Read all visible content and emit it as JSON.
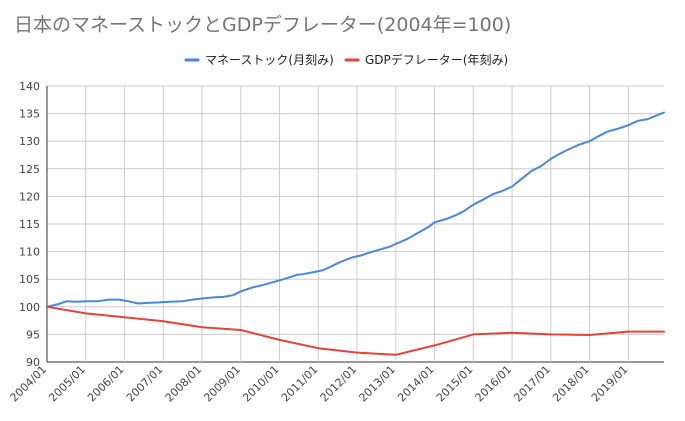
{
  "chart_data": {
    "type": "line",
    "title": "日本のマネーストックとGDPデフレーター(2004年=100)",
    "xlabel": "",
    "ylabel": "",
    "ylim": [
      90,
      140
    ],
    "yticks": [
      "90",
      "95",
      "100",
      "105",
      "110",
      "115",
      "120",
      "125",
      "130",
      "135",
      "140"
    ],
    "xlim": [
      2004.0,
      2019.92
    ],
    "xticks": [
      "2004/01",
      "2005/01",
      "2006/01",
      "2007/01",
      "2008/01",
      "2009/01",
      "2010/01",
      "2011/01",
      "2012/01",
      "2013/01",
      "2014/01",
      "2015/01",
      "2016/01",
      "2017/01",
      "2018/01",
      "2019/01"
    ],
    "grid": true,
    "legend_position": "top",
    "series": [
      {
        "name": "マネーストック(月刻み)",
        "color": "#4a86e8",
        "x": [
          2004.0,
          2004.3,
          2004.5,
          2004.75,
          2005.0,
          2005.3,
          2005.6,
          2005.85,
          2006.1,
          2006.35,
          2006.6,
          2006.9,
          2007.15,
          2007.5,
          2007.75,
          2008.0,
          2008.3,
          2008.55,
          2008.8,
          2009.0,
          2009.3,
          2009.6,
          2009.9,
          2010.2,
          2010.45,
          2010.6,
          2010.9,
          2011.1,
          2011.3,
          2011.5,
          2011.7,
          2011.9,
          2012.1,
          2012.35,
          2012.6,
          2012.85,
          2013.0,
          2013.3,
          2013.6,
          2013.85,
          2014.0,
          2014.3,
          2014.55,
          2014.75,
          2015.0,
          2015.25,
          2015.5,
          2015.75,
          2016.0,
          2016.25,
          2016.5,
          2016.75,
          2017.0,
          2017.2,
          2017.45,
          2017.7,
          2018.0,
          2018.2,
          2018.45,
          2018.75,
          2019.0,
          2019.25,
          2019.5,
          2019.92
        ],
        "values": [
          100.0,
          100.5,
          101.0,
          100.9,
          101.0,
          101.0,
          101.3,
          101.3,
          101.0,
          100.6,
          100.7,
          100.8,
          100.9,
          101.0,
          101.3,
          101.5,
          101.7,
          101.8,
          102.1,
          102.8,
          103.5,
          104.0,
          104.6,
          105.2,
          105.8,
          105.9,
          106.3,
          106.6,
          107.2,
          107.9,
          108.5,
          109.0,
          109.3,
          109.9,
          110.4,
          110.9,
          111.4,
          112.3,
          113.5,
          114.5,
          115.3,
          115.9,
          116.6,
          117.3,
          118.5,
          119.4,
          120.4,
          121.0,
          121.8,
          123.2,
          124.6,
          125.5,
          126.8,
          127.6,
          128.5,
          129.3,
          130.0,
          130.8,
          131.7,
          132.3,
          132.9,
          133.7,
          134.0,
          135.2
        ]
      },
      {
        "name": "GDPデフレーター(年刻み)",
        "color": "#e0453a",
        "x": [
          2004.0,
          2005.0,
          2006.0,
          2007.0,
          2008.0,
          2009.0,
          2010.0,
          2011.0,
          2012.0,
          2013.0,
          2014.0,
          2015.0,
          2016.0,
          2017.0,
          2018.0,
          2019.0,
          2019.92
        ],
        "values": [
          100.0,
          98.8,
          98.1,
          97.4,
          96.3,
          95.8,
          94.0,
          92.5,
          91.7,
          91.3,
          93.0,
          95.0,
          95.3,
          95.0,
          94.9,
          95.5,
          95.5
        ]
      }
    ]
  }
}
